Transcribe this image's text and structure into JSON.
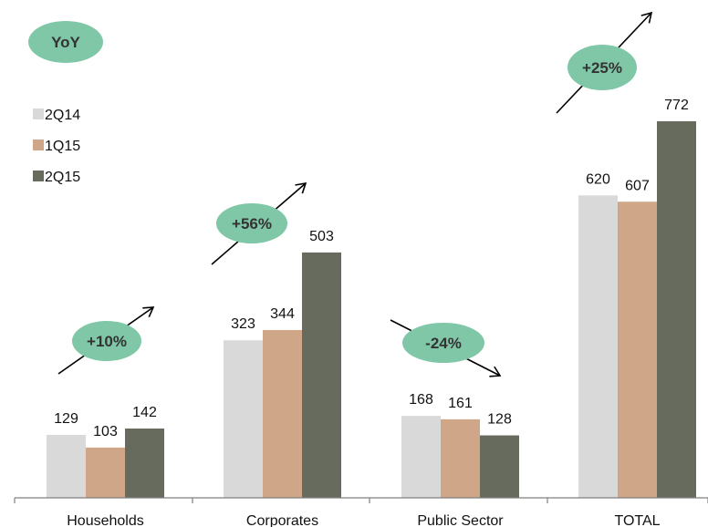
{
  "yoy_badge": {
    "label": "YoY",
    "color": "#7fc7a6"
  },
  "chart_data": {
    "type": "bar",
    "title": "",
    "xlabel": "",
    "ylabel": "",
    "ylim": [
      0,
      800
    ],
    "grid": false,
    "legend_position": "top-left",
    "categories": [
      "Households",
      "Corporates",
      "Public Sector",
      "TOTAL"
    ],
    "series": [
      {
        "name": "2Q14",
        "color": "#d9d9d9",
        "values": [
          129,
          323,
          168,
          620
        ]
      },
      {
        "name": "1Q15",
        "color": "#d0a689",
        "values": [
          103,
          344,
          161,
          607
        ]
      },
      {
        "name": "2Q15",
        "color": "#676b5e",
        "values": [
          142,
          503,
          128,
          772
        ]
      }
    ],
    "annotations": [
      {
        "category": "Households",
        "label": "+10%",
        "direction": "up"
      },
      {
        "category": "Corporates",
        "label": "+56%",
        "direction": "up"
      },
      {
        "category": "Public Sector",
        "label": "-24%",
        "direction": "down"
      },
      {
        "category": "TOTAL",
        "label": "+25%",
        "direction": "up"
      }
    ]
  }
}
